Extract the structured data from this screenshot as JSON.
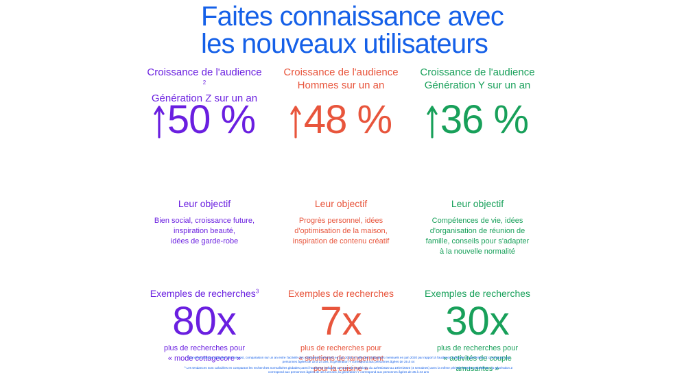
{
  "title": {
    "line1": "Faites connaissance avec",
    "line2": "les nouveaux utilisateurs"
  },
  "colors": {
    "title": "#1560e8",
    "gen_z": "#6a1fe0",
    "hommes": "#e8553c",
    "gen_y": "#18a05a"
  },
  "columns": [
    {
      "growth_label_line1": "Croissance de l'audience",
      "growth_sup": "2",
      "growth_label_line2": "Génération Z sur un an",
      "arrow_icon": "arrow-up-icon",
      "growth_value": "50 %",
      "objective_heading": "Leur objectif",
      "objective_lines": [
        "Bien social, croissance future,",
        "inspiration beauté,",
        "idées de garde-robe",
        ""
      ],
      "search_heading": "Exemples de recherches",
      "search_sup": "3",
      "multiplier": "80x",
      "multiplier_desc": [
        "plus de recherches pour",
        "« mode cottagecore »",
        ""
      ]
    },
    {
      "growth_label_line1": "Croissance de l'audience",
      "growth_sup": "",
      "growth_label_line2": "Hommes sur un an",
      "arrow_icon": "arrow-up-icon",
      "growth_value": "48 %",
      "objective_heading": "Leur objectif",
      "objective_lines": [
        "Progrès personnel, idées",
        "d'optimisation de la maison,",
        "inspiration de contenu créatif",
        ""
      ],
      "search_heading": "Exemples de recherches",
      "search_sup": "",
      "multiplier": "7x",
      "multiplier_desc": [
        "plus de recherches pour",
        "« solutions de rangement",
        "pour la cuisine »"
      ]
    },
    {
      "growth_label_line1": "Croissance de l'audience",
      "growth_sup": "",
      "growth_label_line2": "Génération Y sur un an",
      "arrow_icon": "arrow-up-icon",
      "growth_value": "36 %",
      "objective_heading": "Leur objectif",
      "objective_lines": [
        "Compétences de vie, idées",
        "d'organisation de réunion de",
        "famille, conseils pour s'adapter",
        "à la nouvelle normalité"
      ],
      "search_heading": "Exemples de recherches",
      "search_sup": "",
      "multiplier": "30x",
      "multiplier_desc": [
        "plus de recherches pour",
        "« activités de couple",
        "amusantes »"
      ]
    }
  ],
  "footnotes": {
    "note2": "² Données internes globales de Pinterest, comparaison sur un an entre l'activité des utilisateurs mensuels en juin 2019 et celle des utilisateurs mensuels en juin 2020 par rapport à l'audience indiquée ; la génération Z correspond aux personnes âgées de 18 à 24 ans, la génération Y correspond aux personnes âgées de 25 à 44",
    "note3": "³ Les tendances sont calculées en comparant les recherches normalisées globales parmi l'audience indiquée au cours de la période du 22/06/2020 au 19/07/2020 (4 semaines) avec la même période l'année précédente ; la génération Z correspond aux personnes âgées de 18 à 24 ans, la génération Y correspond aux personnes âgées de 25 à 44 ans"
  }
}
